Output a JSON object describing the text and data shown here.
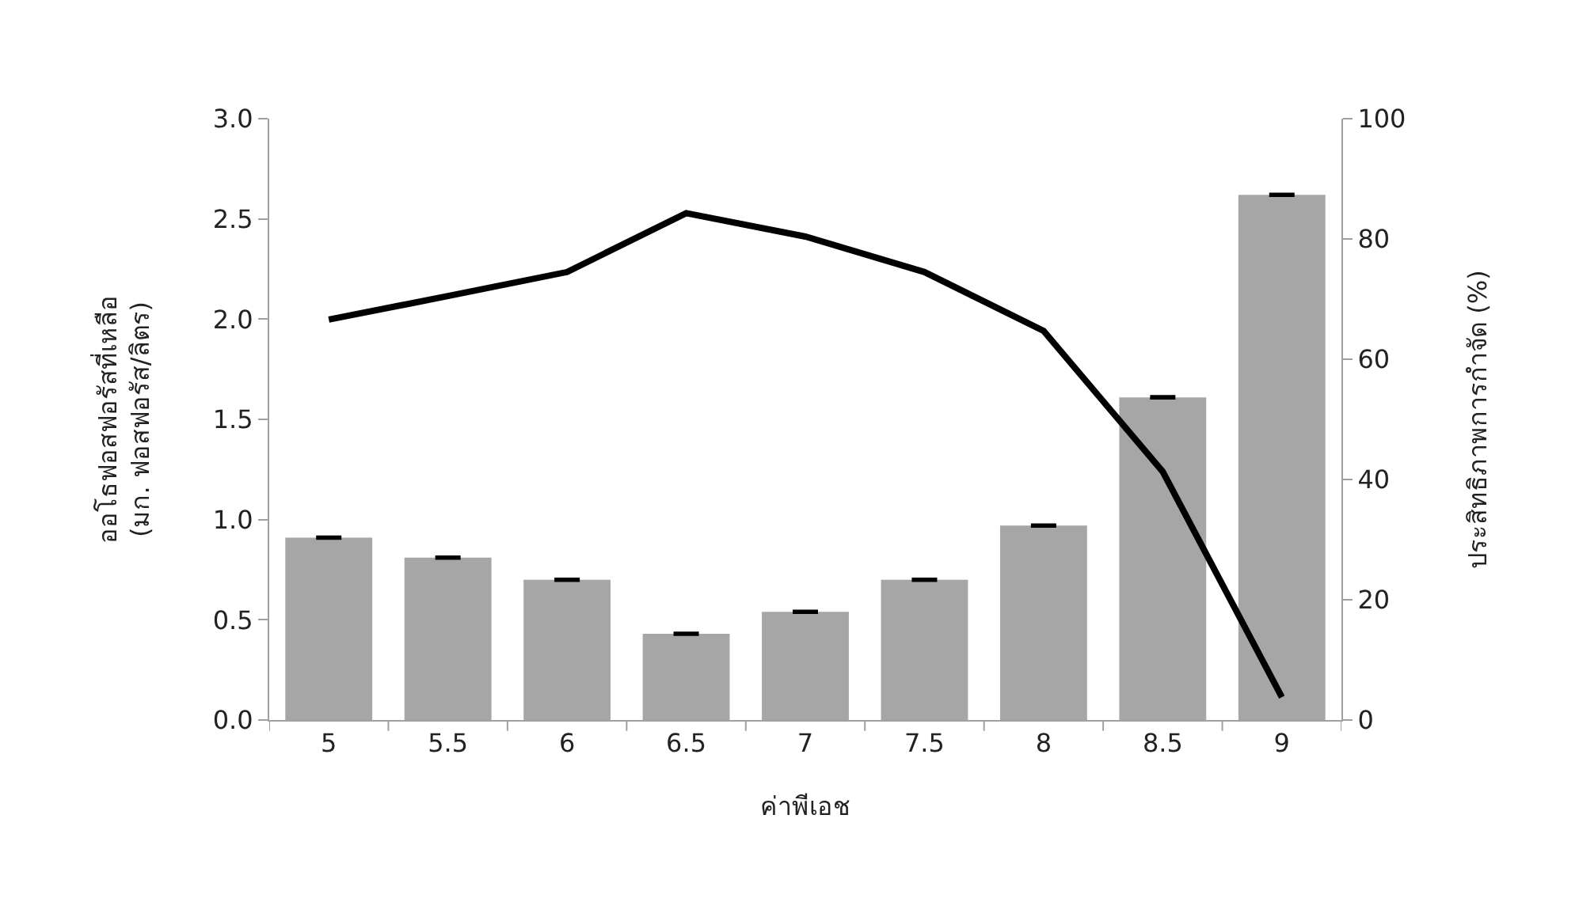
{
  "chart_data": {
    "type": "bar",
    "categories": [
      "5",
      "5.5",
      "6",
      "6.5",
      "7",
      "7.5",
      "8",
      "8.5",
      "9"
    ],
    "xlabel": "ค่าพีเอช",
    "ylabel": "ออโธฟอสฟอรัสที่เหลือ\n(มก. ฟอสฟอรัส/ลิตร)",
    "y2label": "ประสิทธิภาพการกำจัด (%)",
    "series": [
      {
        "color": "#a6a6a6",
        "values": [
          0.91,
          0.81,
          0.7,
          0.43,
          0.54,
          0.7,
          0.97,
          1.61,
          2.62
        ],
        "errors": [
          0.005,
          0.005,
          0.005,
          0.005,
          0.005,
          0.005,
          0.005,
          0.005,
          0.005
        ]
      },
      {
        "type": "line",
        "axis": "y2",
        "color": "#000000",
        "values": [
          66.6,
          70.5,
          74.5,
          84.3,
          80.4,
          74.5,
          64.7,
          41.3,
          3.8
        ]
      }
    ],
    "ylim": [
      0,
      3
    ],
    "yticks": [
      {
        "value": 0,
        "label": "0.0"
      },
      {
        "value": 0.5,
        "label": "0.5"
      },
      {
        "value": 1,
        "label": "1.0"
      },
      {
        "value": 1.5,
        "label": "1.5"
      },
      {
        "value": 2,
        "label": "2.0"
      },
      {
        "value": 2.5,
        "label": "2.5"
      },
      {
        "value": 3,
        "label": "3.0"
      }
    ],
    "y2lim": [
      0,
      100
    ],
    "y2ticks": [
      0,
      20,
      40,
      60,
      80,
      100
    ],
    "marker": "none",
    "line_style": "solid"
  }
}
